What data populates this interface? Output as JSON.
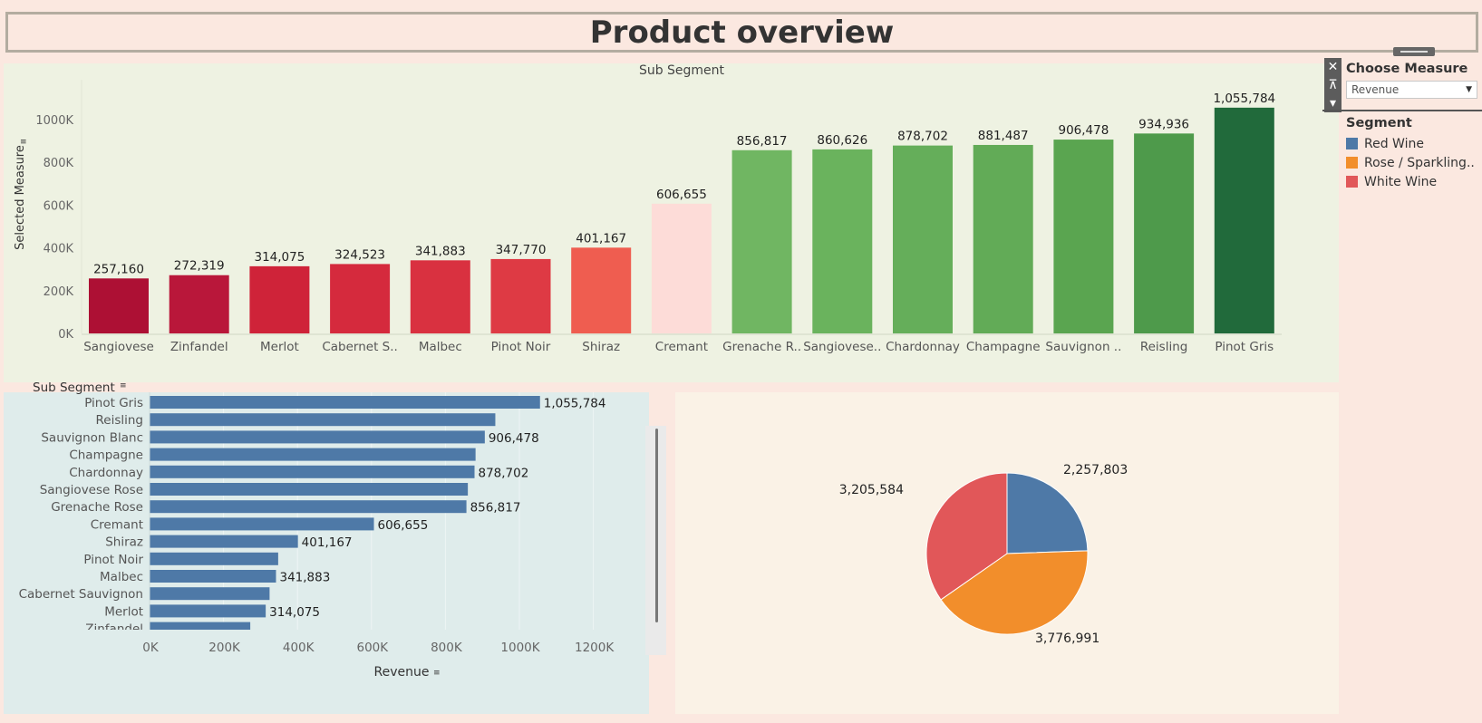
{
  "title": "Product overview",
  "top_chart_title": "Sub Segment",
  "controls": {
    "measure_title": "Choose Measure",
    "measure_value": "Revenue",
    "close_icon": "close-icon",
    "pin_icon": "pin-icon",
    "menu_icon": "dropdown-icon"
  },
  "legend": {
    "title": "Segment",
    "items": [
      {
        "label": "Red Wine",
        "color": "#4e79a7"
      },
      {
        "label": "Rose / Sparkling..",
        "color": "#f28e2b"
      },
      {
        "label": "White Wine",
        "color": "#e15759"
      }
    ]
  },
  "colors": {
    "bar_horizontal": "#4e79a7",
    "pie_red": "#4e79a7",
    "pie_rose": "#f28e2b",
    "pie_white": "#e15759"
  },
  "chart_data": [
    {
      "type": "bar",
      "title": "Sub Segment",
      "ylabel": "Selected Measure",
      "ylim": [
        0,
        1100000
      ],
      "yticks": [
        "0K",
        "200K",
        "400K",
        "600K",
        "800K",
        "1000K"
      ],
      "categories": [
        "Sangiovese",
        "Zinfandel",
        "Merlot",
        "Cabernet S..",
        "Malbec",
        "Pinot Noir",
        "Shiraz",
        "Cremant",
        "Grenache R..",
        "Sangiovese..",
        "Chardonnay",
        "Champagne",
        "Sauvignon ..",
        "Reisling",
        "Pinot Gris"
      ],
      "values": [
        257160,
        272319,
        314075,
        324523,
        341883,
        347770,
        401167,
        606655,
        856817,
        860626,
        878702,
        881487,
        906478,
        934936,
        1055784
      ],
      "value_labels": [
        "257,160",
        "272,319",
        "314,075",
        "324,523",
        "341,883",
        "347,770",
        "401,167",
        "606,655",
        "856,817",
        "860,626",
        "878,702",
        "881,487",
        "906,478",
        "934,936",
        "1,055,784"
      ],
      "colors": [
        "#ad1034",
        "#b9173a",
        "#cf2339",
        "#d52a3d",
        "#d93140",
        "#de3a44",
        "#ef5d50",
        "#fddcd8",
        "#70b662",
        "#6ab35d",
        "#65ae5a",
        "#62ab57",
        "#5aa550",
        "#4e9a4b",
        "#216a3b"
      ]
    },
    {
      "type": "bar",
      "orientation": "horizontal",
      "ylabel": "Sub Segment",
      "xlabel": "Revenue",
      "xlim": [
        0,
        1300000
      ],
      "xticks": [
        "0K",
        "200K",
        "400K",
        "600K",
        "800K",
        "1000K",
        "1200K"
      ],
      "categories": [
        "Pinot Gris",
        "Reisling",
        "Sauvignon Blanc",
        "Champagne",
        "Chardonnay",
        "Sangiovese Rose",
        "Grenache Rose",
        "Cremant",
        "Shiraz",
        "Pinot Noir",
        "Malbec",
        "Cabernet Sauvignon",
        "Merlot",
        "Zinfandel"
      ],
      "values": [
        1055784,
        934936,
        906478,
        881487,
        878702,
        860626,
        856817,
        606655,
        401167,
        347770,
        341883,
        324523,
        314075,
        272319
      ],
      "value_labels": [
        "1,055,784",
        "",
        "906,478",
        "",
        "878,702",
        "",
        "856,817",
        "606,655",
        "401,167",
        "",
        "341,883",
        "",
        "314,075",
        ""
      ]
    },
    {
      "type": "pie",
      "series": [
        {
          "name": "Red Wine",
          "value": 2257803,
          "label": "2,257,803"
        },
        {
          "name": "Rose / Sparkling..",
          "value": 3776991,
          "label": "3,776,991"
        },
        {
          "name": "White Wine",
          "value": 3205584,
          "label": "3,205,584"
        }
      ]
    }
  ]
}
